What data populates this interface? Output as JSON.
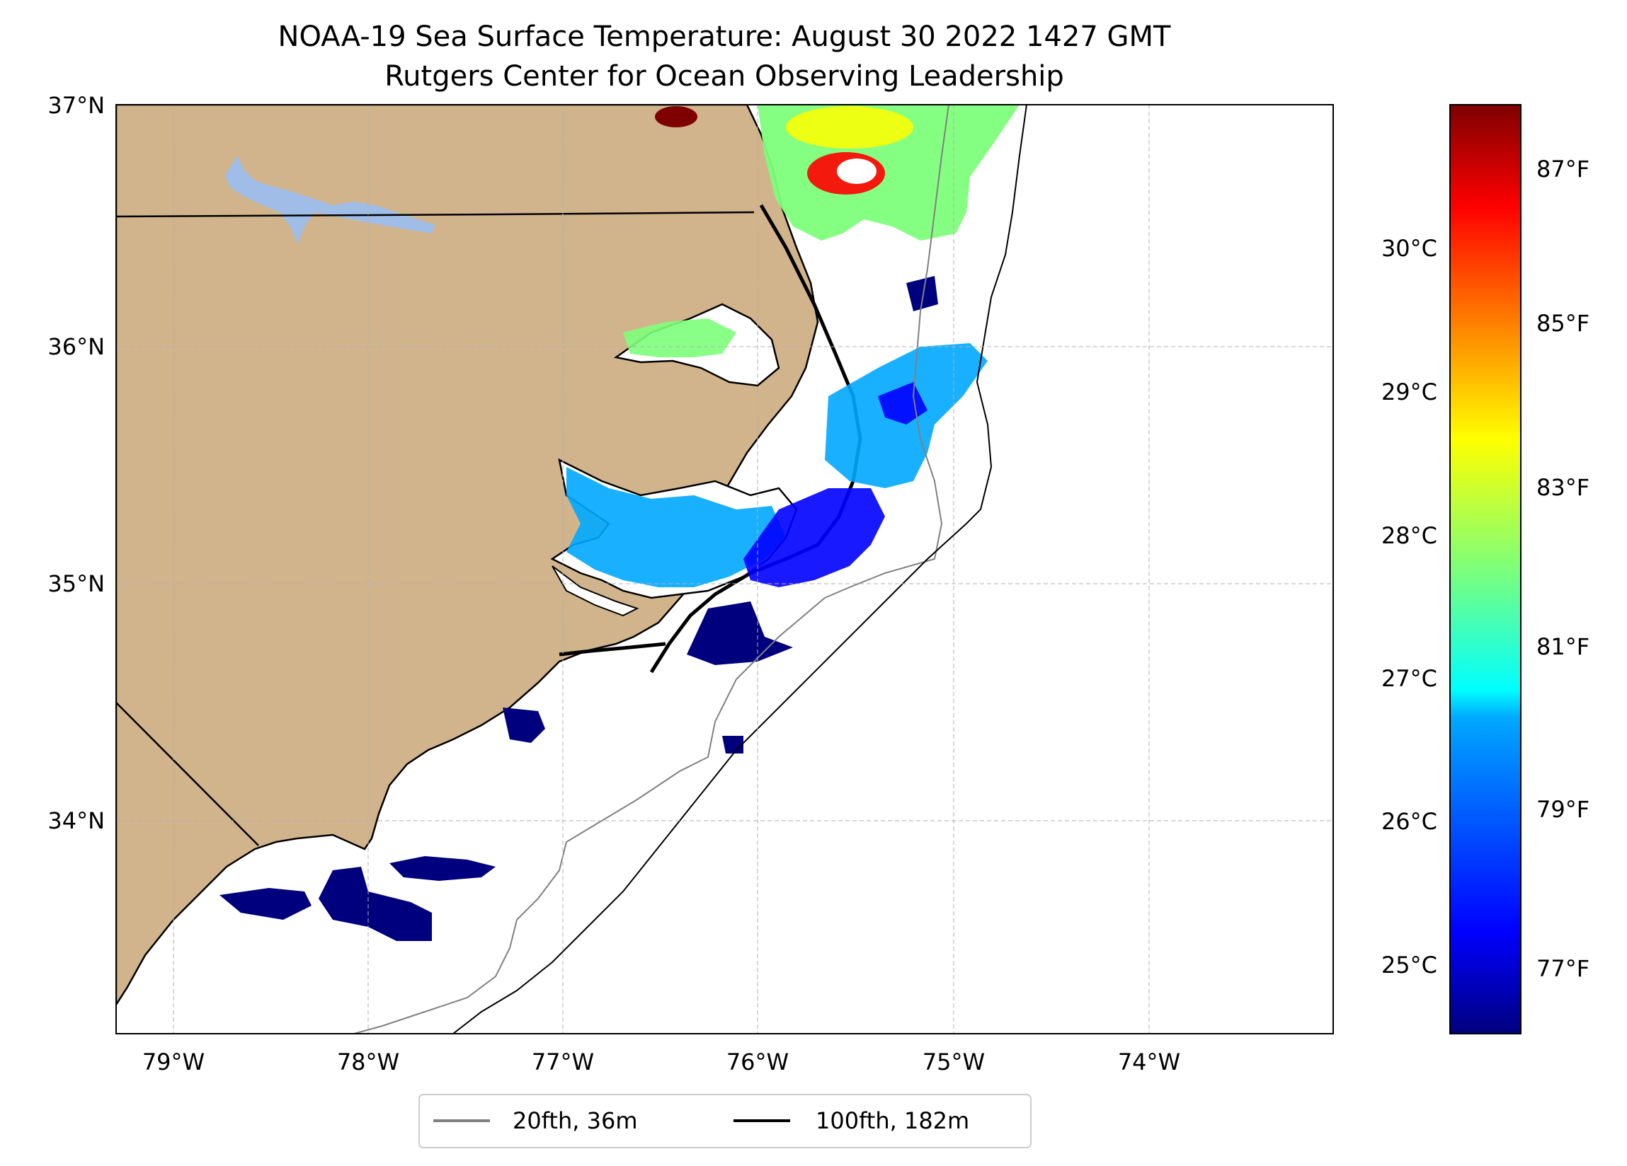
{
  "title": {
    "line1": "NOAA-19 Sea Surface Temperature: August 30 2022 1427 GMT",
    "line2": "Rutgers Center for Ocean Observing Leadership"
  },
  "map": {
    "lon_range": [
      -79.3,
      -73.2
    ],
    "lat_range": [
      33.1,
      37.0
    ],
    "x_ticks": [
      "79°W",
      "78°W",
      "77°W",
      "76°W",
      "75°W",
      "74°W"
    ],
    "y_ticks": [
      "37°N",
      "36°N",
      "35°N",
      "34°N"
    ],
    "land_color": "#d2b48c",
    "lake_color": "#9fbde6",
    "gridlines": true
  },
  "colorbar": {
    "colormap": "jet",
    "range_celsius": [
      24.5,
      31.0
    ],
    "celsius_ticks": [
      "30°C",
      "29°C",
      "28°C",
      "27°C",
      "26°C",
      "25°C"
    ],
    "fahrenheit_ticks": [
      "87°F",
      "85°F",
      "83°F",
      "81°F",
      "79°F",
      "77°F"
    ]
  },
  "legend": {
    "items": [
      {
        "label": "20fth, 36m",
        "color": "#808080"
      },
      {
        "label": "100fth, 182m",
        "color": "#000000"
      }
    ],
    "placement": "bottom-center"
  }
}
